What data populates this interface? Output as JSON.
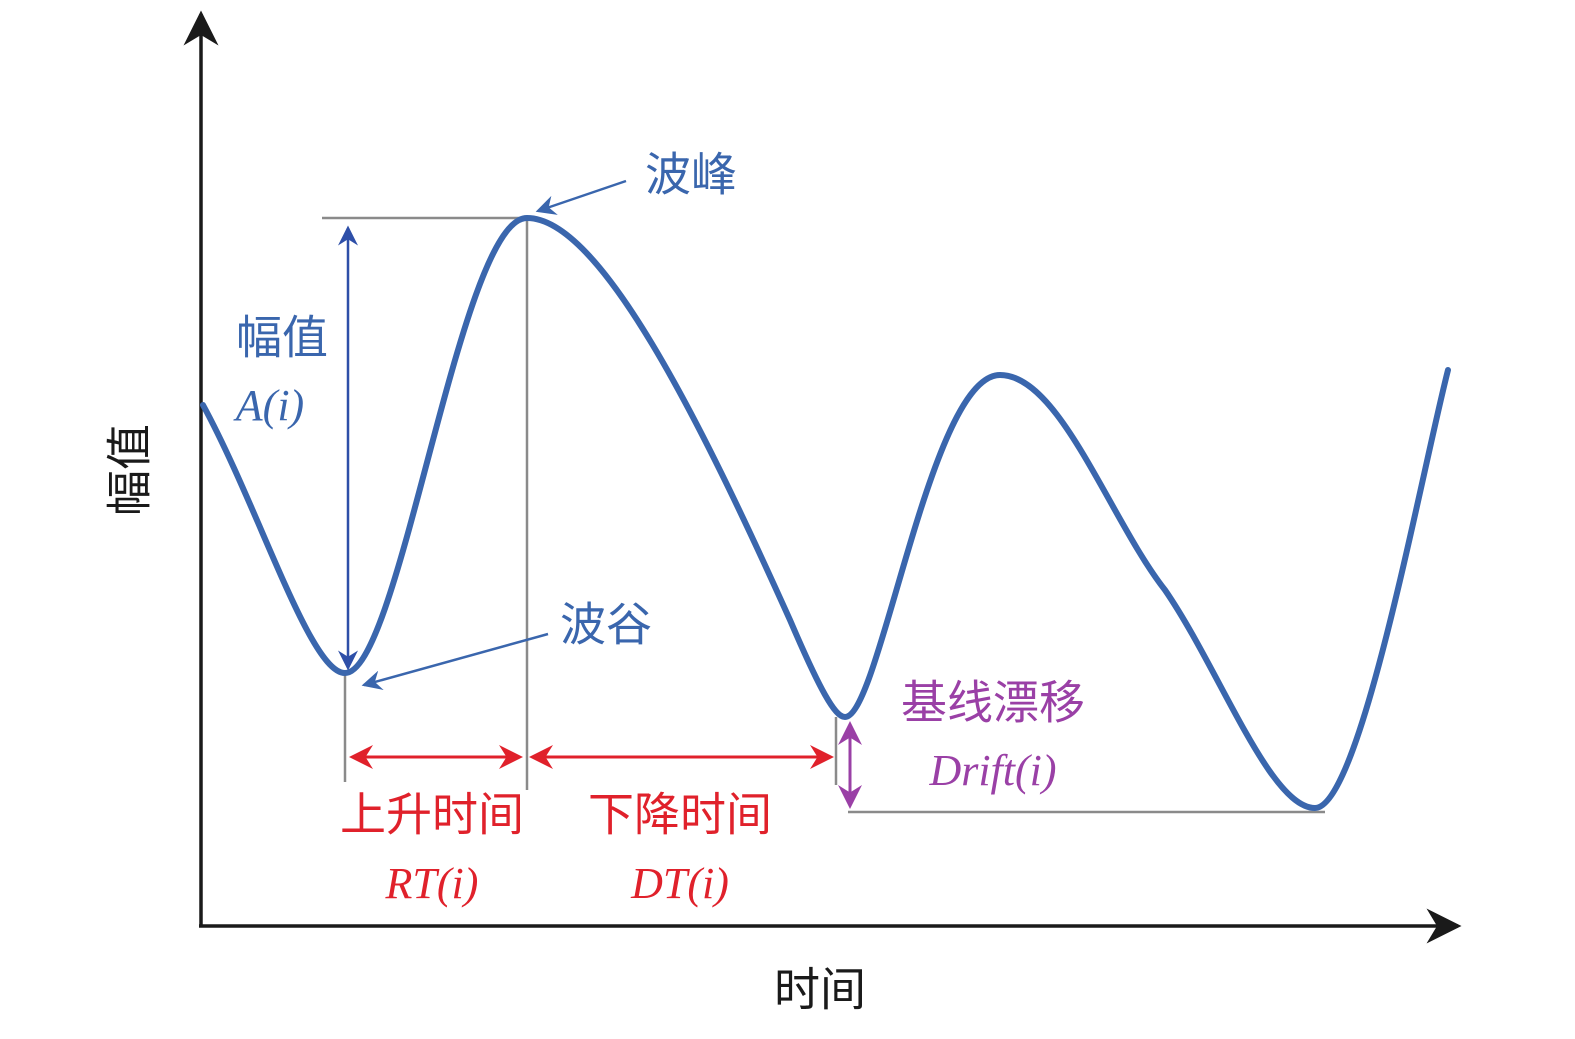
{
  "axes": {
    "y_label": "幅值",
    "x_label": "时间"
  },
  "annotations": {
    "peak": "波峰",
    "trough": "波谷",
    "amplitude": {
      "label": "幅值",
      "symbol": "A(i)"
    },
    "rise_time": {
      "label": "上升时间",
      "symbol": "RT(i)"
    },
    "fall_time": {
      "label": "下降时间",
      "symbol": "DT(i)"
    },
    "drift": {
      "label": "基线漂移",
      "symbol": "Drift(i)"
    }
  }
}
